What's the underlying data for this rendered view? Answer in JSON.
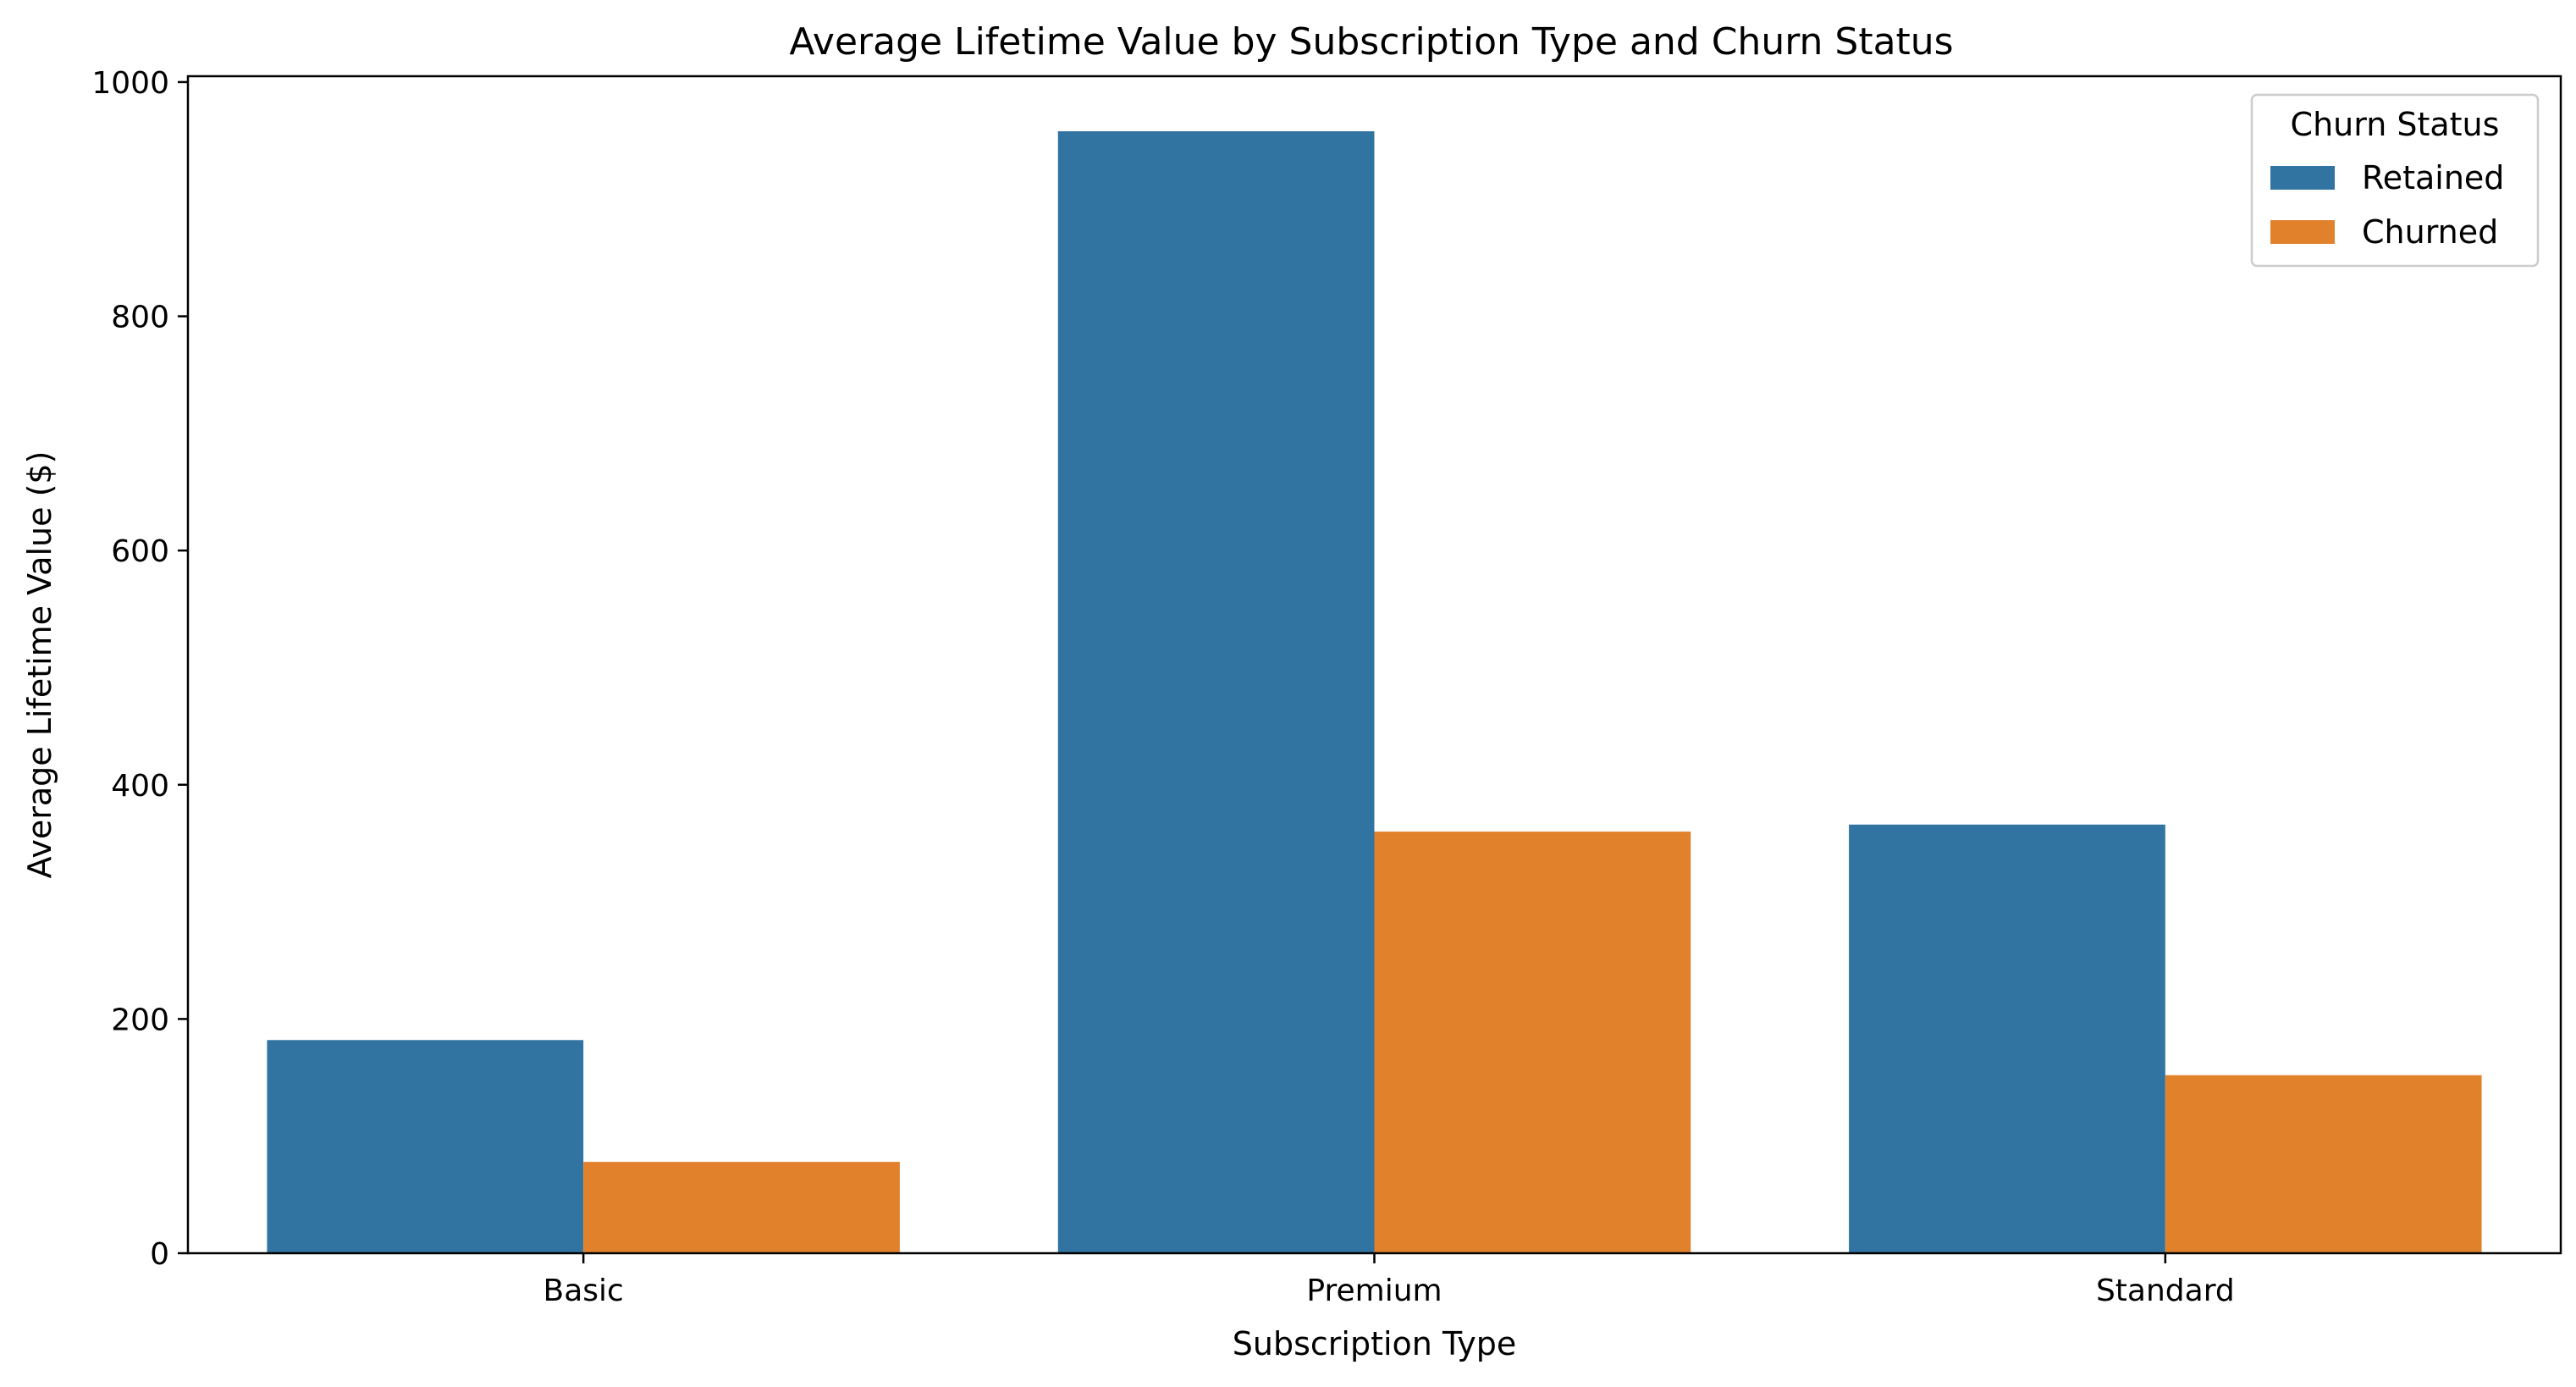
{
  "chart_data": {
    "type": "bar",
    "title": "Average Lifetime Value by Subscription Type and Churn Status",
    "xlabel": "Subscription Type",
    "ylabel": "Average Lifetime Value ($)",
    "categories": [
      "Basic",
      "Premium",
      "Standard"
    ],
    "ylim": [
      0,
      1005
    ],
    "yticks": [
      0,
      200,
      400,
      600,
      800,
      1000
    ],
    "grid": false,
    "legend": {
      "title": "Churn Status",
      "placement": "top-right"
    },
    "series": [
      {
        "name": "Retained",
        "color": "#3274a1",
        "values": [
          182,
          958,
          366
        ]
      },
      {
        "name": "Churned",
        "color": "#e1812c",
        "values": [
          78,
          360,
          152
        ]
      }
    ]
  }
}
